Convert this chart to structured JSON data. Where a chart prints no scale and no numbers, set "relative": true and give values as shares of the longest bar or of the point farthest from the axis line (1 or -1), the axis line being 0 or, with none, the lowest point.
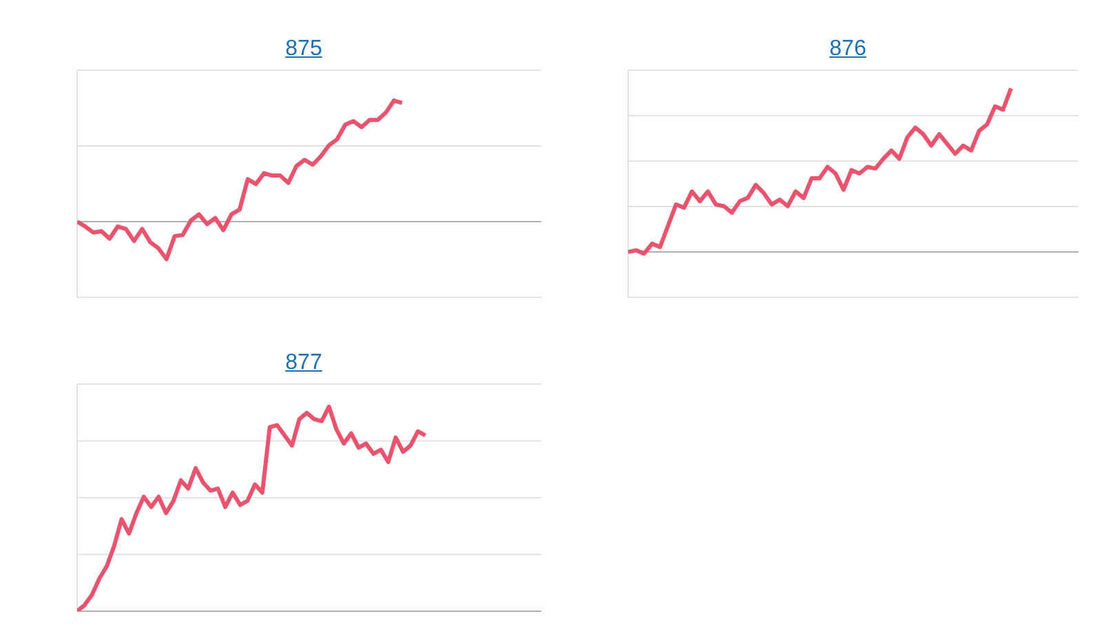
{
  "chart_data": [
    {
      "type": "line",
      "title": "875",
      "relative": true,
      "grid": "y",
      "marker": "none",
      "categories": [
        null,
        null,
        null,
        null,
        null,
        null,
        null,
        null,
        null,
        null,
        null,
        null,
        null,
        null,
        null,
        null,
        null,
        null,
        null,
        null,
        null,
        null,
        null,
        null,
        null,
        null,
        null,
        null,
        null,
        null,
        null,
        null,
        null,
        null,
        null,
        null,
        null,
        null,
        null,
        null,
        null
      ],
      "series": [
        {
          "color": "#e8546e",
          "values": [
            0,
            -0.04,
            -0.09,
            -0.08,
            -0.14,
            -0.04,
            -0.06,
            -0.16,
            -0.06,
            -0.17,
            -0.22,
            -0.31,
            -0.12,
            -0.11,
            0.01,
            0.06,
            -0.02,
            0.03,
            -0.07,
            0.06,
            0.1,
            0.35,
            0.31,
            0.4,
            0.38,
            0.38,
            0.32,
            0.46,
            0.51,
            0.47,
            0.54,
            0.63,
            0.68,
            0.8,
            0.83,
            0.78,
            0.84,
            0.84,
            0.9,
            1,
            0.98
          ]
        }
      ]
    },
    {
      "type": "line",
      "title": "876",
      "relative": true,
      "grid": "y",
      "marker": "none",
      "categories": [
        null,
        null,
        null,
        null,
        null,
        null,
        null,
        null,
        null,
        null,
        null,
        null,
        null,
        null,
        null,
        null,
        null,
        null,
        null,
        null,
        null,
        null,
        null,
        null,
        null,
        null,
        null,
        null,
        null,
        null,
        null,
        null,
        null,
        null,
        null,
        null,
        null,
        null,
        null,
        null,
        null,
        null,
        null,
        null,
        null,
        null,
        null,
        null,
        null
      ],
      "series": [
        {
          "color": "#e8546e",
          "values": [
            0,
            0.01,
            -0.01,
            0.05,
            0.03,
            0.16,
            0.29,
            0.27,
            0.37,
            0.31,
            0.37,
            0.29,
            0.28,
            0.24,
            0.31,
            0.33,
            0.41,
            0.36,
            0.29,
            0.32,
            0.28,
            0.37,
            0.33,
            0.45,
            0.45,
            0.52,
            0.48,
            0.38,
            0.5,
            0.48,
            0.52,
            0.51,
            0.57,
            0.62,
            0.57,
            0.7,
            0.76,
            0.72,
            0.65,
            0.72,
            0.66,
            0.6,
            0.65,
            0.62,
            0.74,
            0.78,
            0.89,
            0.87,
            1
          ]
        }
      ]
    },
    {
      "type": "line",
      "title": "877",
      "relative": true,
      "grid": "y",
      "marker": "none",
      "categories": [
        null,
        null,
        null,
        null,
        null,
        null,
        null,
        null,
        null,
        null,
        null,
        null,
        null,
        null,
        null,
        null,
        null,
        null,
        null,
        null,
        null,
        null,
        null,
        null,
        null,
        null,
        null,
        null,
        null,
        null,
        null,
        null,
        null,
        null,
        null,
        null,
        null,
        null,
        null,
        null,
        null,
        null,
        null,
        null,
        null,
        null,
        null,
        null
      ],
      "series": [
        {
          "color": "#e8546e",
          "values": [
            0,
            0.03,
            0.08,
            0.16,
            0.22,
            0.32,
            0.45,
            0.38,
            0.48,
            0.56,
            0.51,
            0.56,
            0.48,
            0.54,
            0.64,
            0.6,
            0.7,
            0.63,
            0.59,
            0.6,
            0.51,
            0.58,
            0.52,
            0.54,
            0.62,
            0.58,
            0.9,
            0.91,
            0.86,
            0.81,
            0.94,
            0.97,
            0.94,
            0.93,
            1,
            0.89,
            0.82,
            0.87,
            0.8,
            0.82,
            0.77,
            0.79,
            0.73,
            0.85,
            0.78,
            0.81,
            0.88,
            0.86
          ]
        }
      ]
    }
  ]
}
